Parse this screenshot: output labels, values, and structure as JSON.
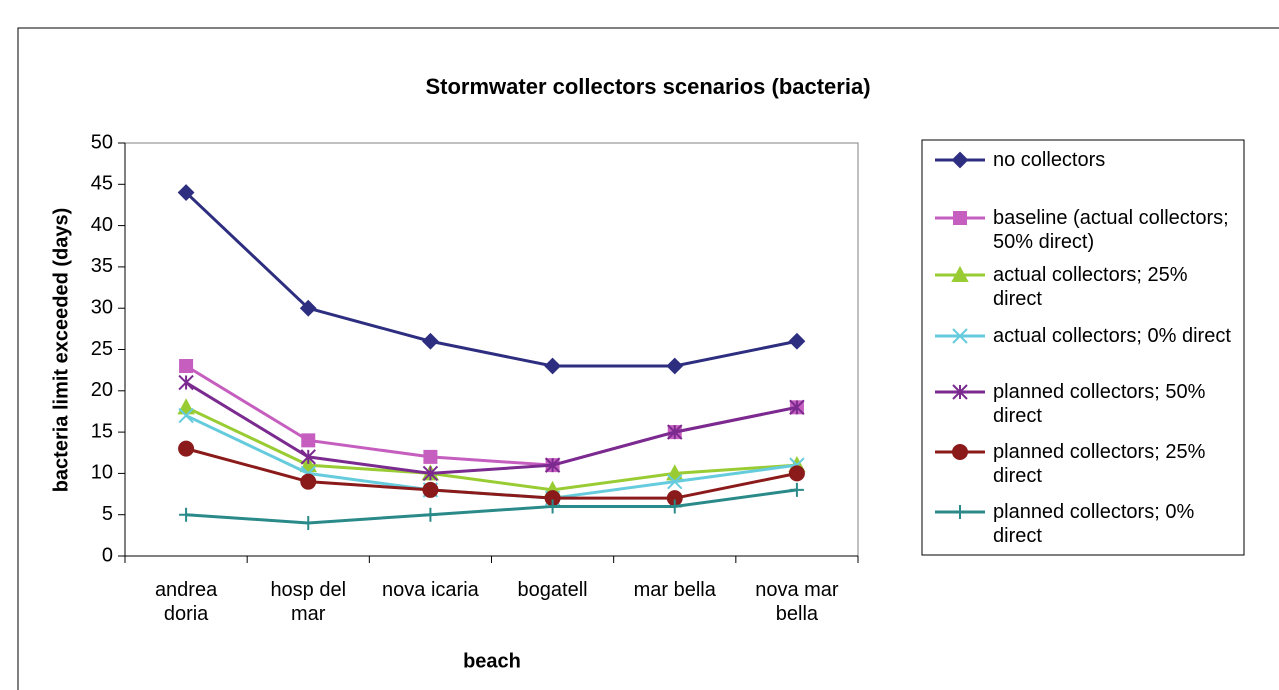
{
  "chart_data": {
    "type": "line",
    "title": "Stormwater collectors scenarios (bacteria)",
    "x_label": "beach",
    "y_label": "bacteria limit exceeded (days)",
    "categories": [
      "andrea doria",
      "hosp del mar",
      "nova icaria",
      "bogatell",
      "mar bella",
      "nova mar bella"
    ],
    "ylim": [
      0,
      50
    ],
    "yticks": [
      0,
      5,
      10,
      15,
      20,
      25,
      30,
      35,
      40,
      45,
      50
    ],
    "legend": "right",
    "series": [
      {
        "name": "no collectors",
        "color": "#2e2e80",
        "marker": "diamond",
        "values": [
          44,
          30,
          26,
          23,
          23,
          26
        ]
      },
      {
        "name": "baseline (actual collectors; 50% direct)",
        "color": "#c55ebf",
        "marker": "square",
        "values": [
          23,
          14,
          12,
          11,
          15,
          18
        ]
      },
      {
        "name": "actual collectors; 25% direct",
        "color": "#99cc33",
        "marker": "triangle",
        "values": [
          18,
          11,
          10,
          8,
          10,
          11
        ]
      },
      {
        "name": "actual collectors; 0% direct",
        "color": "#66ccdd",
        "marker": "x",
        "values": [
          17,
          10,
          8,
          7,
          9,
          11
        ]
      },
      {
        "name": "planned collectors; 50% direct",
        "color": "#7b2a8f",
        "marker": "star",
        "values": [
          21,
          12,
          10,
          11,
          15,
          18
        ]
      },
      {
        "name": "planned collectors; 25% direct",
        "color": "#8b1a1a",
        "marker": "circle",
        "values": [
          13,
          9,
          8,
          7,
          7,
          10
        ]
      },
      {
        "name": "planned collectors; 0% direct",
        "color": "#2a8a8a",
        "marker": "plus",
        "values": [
          5,
          4,
          5,
          6,
          6,
          8
        ]
      }
    ]
  }
}
